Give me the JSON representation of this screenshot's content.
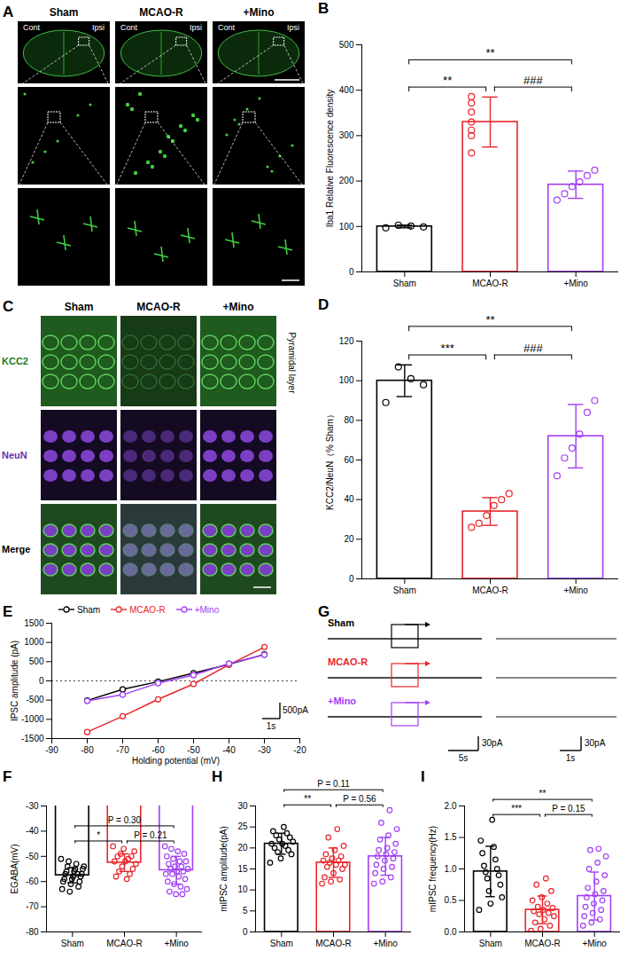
{
  "chart_data": [
    {
      "panel": "B",
      "type": "bar",
      "ylabel": "Iba1 Relative Fluorescence density",
      "categories": [
        "Sham",
        "MCAO-R",
        "+Mino"
      ],
      "colors": [
        "#000000",
        "#e8262a",
        "#a23ef5"
      ],
      "values": [
        100,
        330,
        192
      ],
      "errors": [
        3,
        55,
        30
      ],
      "points": [
        [
          97,
          99,
          101,
          103
        ],
        [
          262,
          300,
          312,
          330,
          352,
          372,
          386
        ],
        [
          158,
          172,
          188,
          198,
          212,
          224
        ]
      ],
      "ylim": [
        0,
        500
      ],
      "yticks": [
        0,
        100,
        200,
        300,
        400,
        500
      ],
      "annotations": [
        {
          "from": "Sham",
          "to": "MCAO-R",
          "label": "**"
        },
        {
          "from": "MCAO-R",
          "to": "+Mino",
          "label": "###"
        },
        {
          "from": "Sham",
          "to": "+Mino",
          "label": "**"
        }
      ]
    },
    {
      "panel": "D",
      "type": "bar",
      "ylabel": "KCC2/NeuN（% Sham）",
      "categories": [
        "Sham",
        "MCAO-R",
        "+Mino"
      ],
      "colors": [
        "#000000",
        "#e8262a",
        "#a23ef5"
      ],
      "values": [
        100,
        34,
        72
      ],
      "errors": [
        8,
        7,
        16
      ],
      "points": [
        [
          89,
          98,
          101,
          107
        ],
        [
          26,
          28,
          32,
          37,
          40,
          43
        ],
        [
          52,
          61,
          66,
          73,
          84,
          90
        ]
      ],
      "ylim": [
        0,
        120
      ],
      "yticks": [
        0,
        20,
        40,
        60,
        80,
        100,
        120
      ],
      "annotations": [
        {
          "from": "Sham",
          "to": "MCAO-R",
          "label": "***"
        },
        {
          "from": "MCAO-R",
          "to": "+Mino",
          "label": "###"
        },
        {
          "from": "Sham",
          "to": "+Mino",
          "label": "**"
        }
      ]
    },
    {
      "panel": "E",
      "type": "line",
      "marker": "circle",
      "line_style": "solid",
      "legend": "top",
      "xlabel": "Holding potential (mV)",
      "ylabel": "IPSC amplitude (pA)",
      "x": [
        -80,
        -70,
        -60,
        -50,
        -40,
        -30
      ],
      "series": [
        {
          "name": "Sham",
          "color": "#000000",
          "values": [
            -510,
            -220,
            -20,
            200,
            430,
            690
          ]
        },
        {
          "name": "MCAO-R",
          "color": "#e8262a",
          "values": [
            -1330,
            -920,
            -480,
            -80,
            420,
            880
          ]
        },
        {
          "name": "+Mino",
          "color": "#a23ef5",
          "values": [
            -520,
            -360,
            -60,
            150,
            450,
            680
          ]
        }
      ],
      "xlim": [
        -90,
        -20
      ],
      "xticks": [
        -90,
        -80,
        -70,
        -60,
        -50,
        -40,
        -30,
        -20
      ],
      "ylim": [
        -1500,
        1500
      ],
      "yticks": [
        -1500,
        -1000,
        -500,
        0,
        500,
        1000,
        1500
      ],
      "reference_line": 0,
      "scale_bar": {
        "x": "1s",
        "y": "500pA"
      }
    },
    {
      "panel": "F",
      "type": "bar",
      "ylabel": "EGABA(mV)",
      "categories": [
        "Sham",
        "MCAO-R",
        "+Mino"
      ],
      "colors": [
        "#000000",
        "#e8262a",
        "#a23ef5"
      ],
      "values": [
        -57.5,
        -52.5,
        -55.5
      ],
      "errors": [
        3,
        3.5,
        5.5
      ],
      "points": [
        [
          -51,
          -52,
          -53,
          -54,
          -54,
          -55,
          -55,
          -56,
          -56,
          -57,
          -57,
          -58,
          -58,
          -59,
          -59,
          -60,
          -60,
          -61,
          -62,
          -63,
          -64,
          -57
        ],
        [
          -46,
          -47,
          -48,
          -49,
          -50,
          -50,
          -51,
          -52,
          -52,
          -53,
          -54,
          -55,
          -56,
          -57,
          -58,
          -59
        ],
        [
          -46,
          -47,
          -48,
          -49,
          -50,
          -51,
          -52,
          -52,
          -53,
          -54,
          -54,
          -55,
          -55,
          -56,
          -56,
          -57,
          -57,
          -58,
          -59,
          -60,
          -61,
          -62,
          -63,
          -64,
          -65,
          -65
        ]
      ],
      "ylim": [
        -80,
        -30
      ],
      "yticks": [
        -80,
        -70,
        -60,
        -50,
        -40,
        -30
      ],
      "annotations": [
        {
          "from": "Sham",
          "to": "MCAO-R",
          "label": "*"
        },
        {
          "from": "MCAO-R",
          "to": "+Mino",
          "label": "P = 0.21"
        },
        {
          "from": "Sham",
          "to": "+Mino",
          "label": "P = 0.30"
        }
      ]
    },
    {
      "panel": "H",
      "type": "bar",
      "ylabel": "mIPSC amplitude(pA)",
      "categories": [
        "Sham",
        "MCAO-R",
        "+Mino"
      ],
      "colors": [
        "#000000",
        "#e8262a",
        "#a23ef5"
      ],
      "values": [
        21,
        16.5,
        18
      ],
      "errors": [
        2.5,
        3.5,
        4.5
      ],
      "points": [
        [
          16.5,
          17.5,
          18.5,
          19,
          19.5,
          20,
          20.5,
          21,
          21,
          21.5,
          22,
          22.5,
          23,
          23.5,
          24,
          25
        ],
        [
          11.5,
          12,
          12.5,
          13,
          14,
          15,
          15.5,
          16,
          16,
          16.5,
          17,
          17,
          17.5,
          18,
          18.5,
          19.5,
          20.5,
          22.5,
          24.5
        ],
        [
          11.5,
          12,
          13,
          14,
          15,
          15.5,
          16,
          17,
          17.5,
          18,
          18.5,
          19,
          19.5,
          20,
          21,
          22,
          23,
          24.5,
          26,
          29
        ]
      ],
      "ylim": [
        0,
        30
      ],
      "yticks": [
        0,
        5,
        10,
        15,
        20,
        25,
        30
      ],
      "annotations": [
        {
          "from": "Sham",
          "to": "MCAO-R",
          "label": "**"
        },
        {
          "from": "MCAO-R",
          "to": "+Mino",
          "label": "P = 0.56"
        },
        {
          "from": "Sham",
          "to": "+Mino",
          "label": "P = 0.11"
        }
      ]
    },
    {
      "panel": "I",
      "type": "bar",
      "ylabel": "mIPSC frequency(Hz)",
      "categories": [
        "Sham",
        "MCAO-R",
        "+Mino"
      ],
      "colors": [
        "#000000",
        "#e8262a",
        "#a23ef5"
      ],
      "values": [
        0.96,
        0.35,
        0.57
      ],
      "errors": [
        0.4,
        0.22,
        0.38
      ],
      "points": [
        [
          0.35,
          0.45,
          0.55,
          0.65,
          0.75,
          0.85,
          0.9,
          0.95,
          1.0,
          1.05,
          1.15,
          1.25,
          1.35,
          1.45,
          1.78
        ],
        [
          0.02,
          0.05,
          0.1,
          0.15,
          0.2,
          0.25,
          0.28,
          0.3,
          0.33,
          0.35,
          0.38,
          0.4,
          0.45,
          0.5,
          0.55,
          0.65,
          0.75,
          0.85
        ],
        [
          0.1,
          0.15,
          0.2,
          0.25,
          0.3,
          0.35,
          0.4,
          0.45,
          0.5,
          0.55,
          0.6,
          0.65,
          0.7,
          0.8,
          0.9,
          1.0,
          1.1,
          1.2,
          1.3,
          1.32
        ]
      ],
      "ylim": [
        0,
        2
      ],
      "yticks": [
        {
          "value": 0,
          "label": "0.0"
        },
        0.5,
        {
          "value": 1,
          "label": "1.0"
        },
        1.5,
        {
          "value": 2,
          "label": "2.0"
        }
      ],
      "annotations": [
        {
          "from": "Sham",
          "to": "MCAO-R",
          "label": "***"
        },
        {
          "from": "MCAO-R",
          "to": "+Mino",
          "label": "P = 0.15"
        },
        {
          "from": "Sham",
          "to": "+Mino",
          "label": "**"
        }
      ]
    }
  ],
  "image_panels": [
    {
      "panel": "A",
      "columns": [
        "Sham",
        "MCAO-R",
        "+Mino"
      ],
      "hemisphere_labels": [
        "Cont",
        "Ipsi"
      ]
    },
    {
      "panel": "C",
      "columns": [
        "Sham",
        "MCAO-R",
        "+Mino"
      ],
      "rows": [
        "KCC2",
        "NeuN",
        "Merge"
      ],
      "side_label": "Pyramidal layer"
    }
  ],
  "trace_panel": {
    "panel": "G",
    "traces": [
      {
        "name": "Sham",
        "color": "#000000"
      },
      {
        "name": "MCAO-R",
        "color": "#e8262a"
      },
      {
        "name": "+Mino",
        "color": "#a23ef5"
      }
    ],
    "scale_bars": [
      {
        "x": "5s",
        "y": "30pA"
      },
      {
        "x": "1s",
        "y": "30pA"
      }
    ]
  }
}
